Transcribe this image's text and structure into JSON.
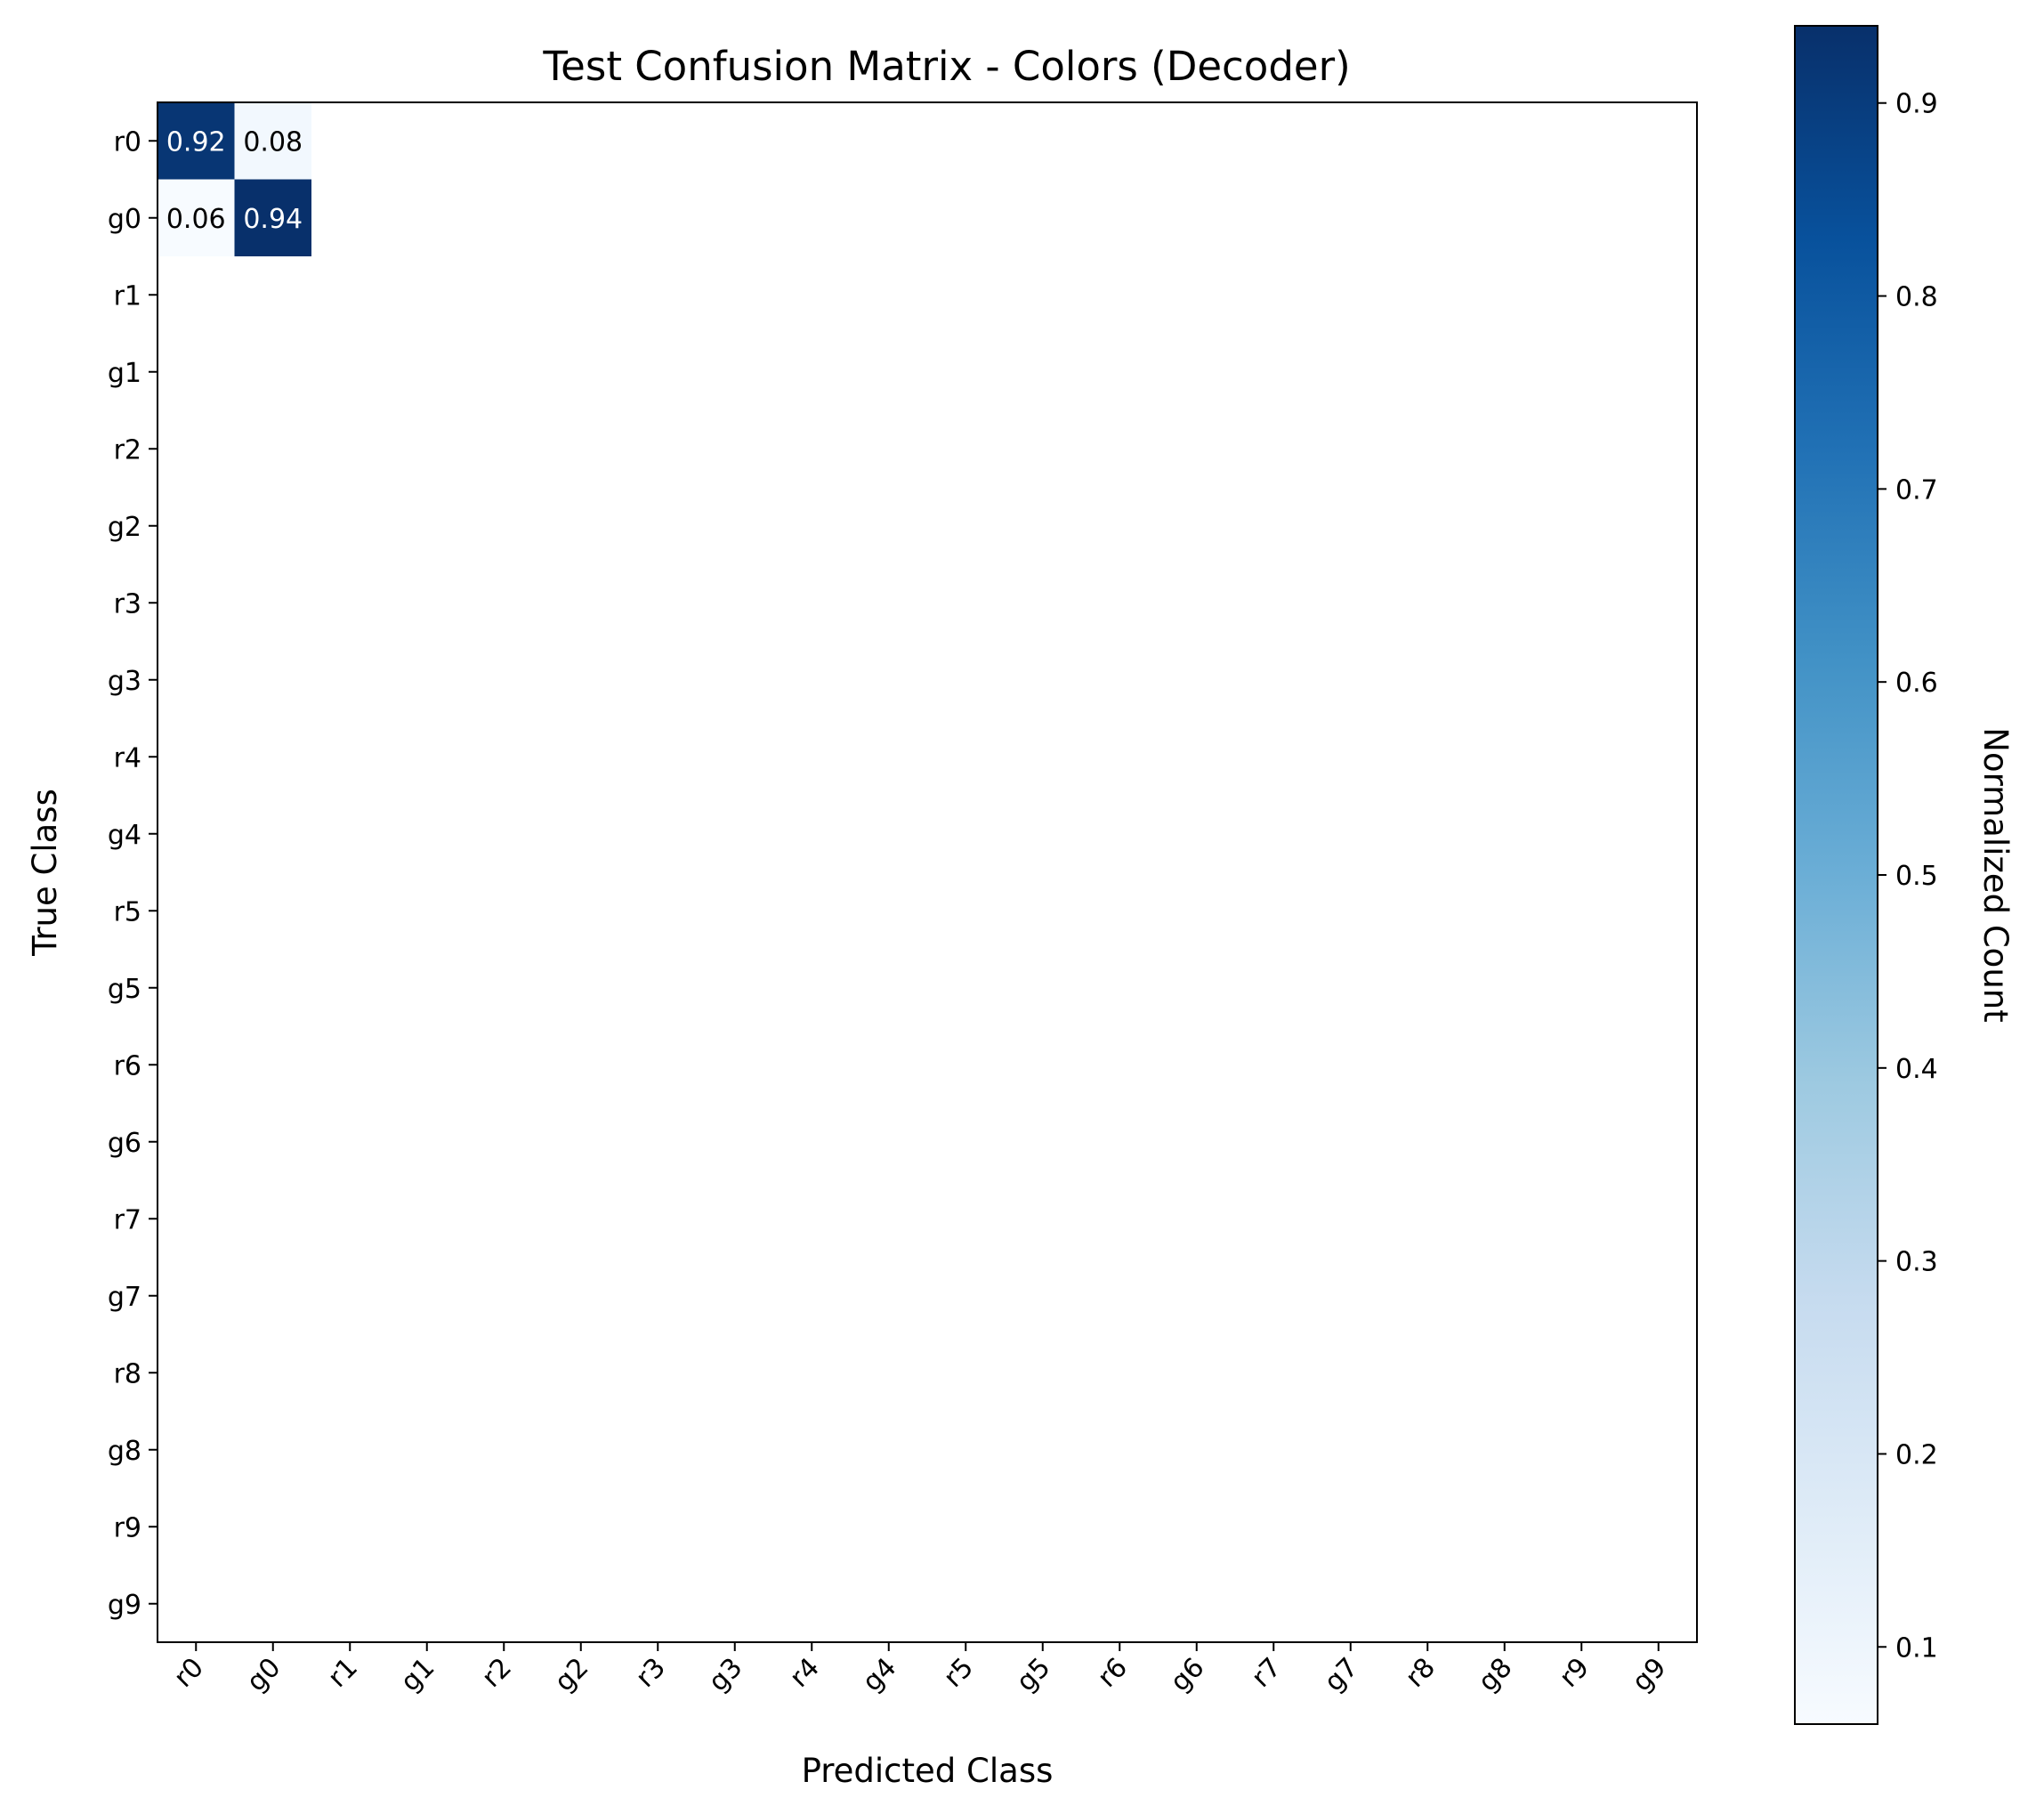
{
  "chart_data": {
    "type": "heatmap",
    "title": "Test Confusion Matrix - Colors (Decoder)",
    "xlabel": "Predicted Class",
    "ylabel": "True Class",
    "classes": [
      "r0",
      "g0",
      "r1",
      "g1",
      "r2",
      "g2",
      "r3",
      "g3",
      "r4",
      "g4",
      "r5",
      "g5",
      "r6",
      "g6",
      "r7",
      "g7",
      "r8",
      "g8",
      "r9",
      "g9"
    ],
    "cells": [
      {
        "row": 0,
        "col": 0,
        "value": 0.92,
        "label": "0.92"
      },
      {
        "row": 0,
        "col": 1,
        "value": 0.08,
        "label": "0.08"
      },
      {
        "row": 1,
        "col": 0,
        "value": 0.06,
        "label": "0.06"
      },
      {
        "row": 1,
        "col": 1,
        "value": 0.94,
        "label": "0.94"
      }
    ],
    "colorbar": {
      "label": "Normalized Count",
      "range": [
        0.06,
        0.94
      ],
      "ticks": [
        "0.1",
        "0.2",
        "0.3",
        "0.4",
        "0.5",
        "0.6",
        "0.7",
        "0.8",
        "0.9"
      ],
      "tick_values": [
        0.1,
        0.2,
        0.3,
        0.4,
        0.5,
        0.6,
        0.7,
        0.8,
        0.9
      ],
      "colormap": [
        "#f7fbff",
        "#deebf7",
        "#c6dbef",
        "#9ecae1",
        "#6baed6",
        "#4292c6",
        "#2171b5",
        "#08519c",
        "#08306b"
      ]
    }
  }
}
